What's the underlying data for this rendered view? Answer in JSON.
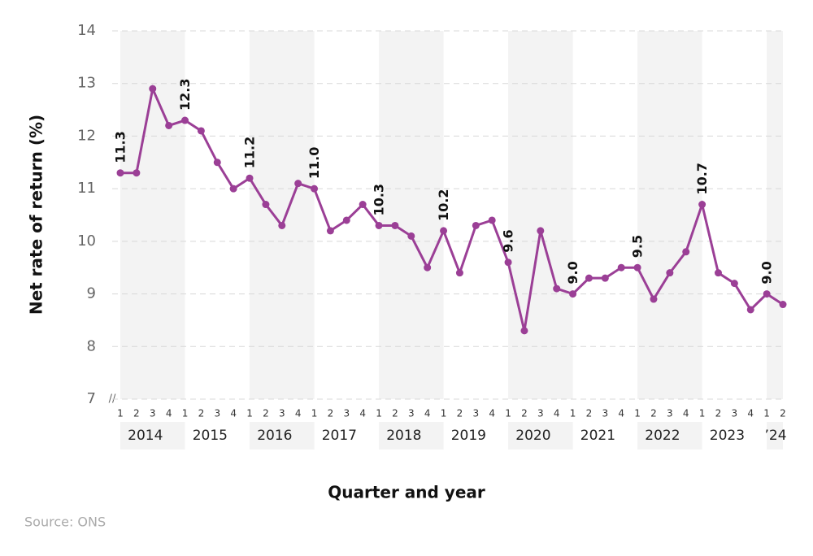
{
  "chart_data": {
    "type": "line",
    "y_label": "Net rate of return (%)",
    "x_label": "Quarter and year",
    "source": "Source: ONS",
    "categories": [
      "1",
      "2",
      "3",
      "4",
      "1",
      "2",
      "3",
      "4",
      "1",
      "2",
      "3",
      "4",
      "1",
      "2",
      "3",
      "4",
      "1",
      "2",
      "3",
      "4",
      "1",
      "2",
      "3",
      "4",
      "1",
      "2",
      "3",
      "4",
      "1",
      "2",
      "3",
      "4",
      "1",
      "2",
      "3",
      "4",
      "1",
      "2",
      "3",
      "4",
      "1",
      "2"
    ],
    "year_groups": [
      "2014",
      "2015",
      "2016",
      "2017",
      "2018",
      "2019",
      "2020",
      "2021",
      "2022",
      "2023",
      "’24"
    ],
    "series": [
      {
        "color": "#9b3f96",
        "values": [
          11.3,
          11.3,
          12.9,
          12.2,
          12.3,
          12.1,
          11.5,
          11.0,
          11.2,
          10.7,
          10.3,
          11.1,
          11.0,
          10.2,
          10.4,
          10.7,
          10.3,
          10.3,
          10.1,
          9.5,
          10.2,
          9.4,
          10.3,
          10.4,
          9.6,
          8.3,
          10.2,
          9.1,
          9.0,
          9.3,
          9.3,
          9.5,
          9.5,
          8.9,
          9.4,
          9.8,
          10.7,
          9.4,
          9.2,
          8.7,
          9.0,
          8.8
        ],
        "value_labels": [
          "11.3",
          null,
          null,
          null,
          "12.3",
          null,
          null,
          null,
          "11.2",
          null,
          null,
          null,
          "11.0",
          null,
          null,
          null,
          "10.3",
          null,
          null,
          null,
          "10.2",
          null,
          null,
          null,
          "9.6",
          null,
          null,
          null,
          "9.0",
          null,
          null,
          null,
          "9.5",
          null,
          null,
          null,
          "10.7",
          null,
          null,
          null,
          "9.0",
          null
        ]
      }
    ],
    "ylim": [
      7,
      14
    ],
    "yticks": [
      7,
      8,
      9,
      10,
      11,
      12,
      13,
      14
    ],
    "grid": true
  }
}
